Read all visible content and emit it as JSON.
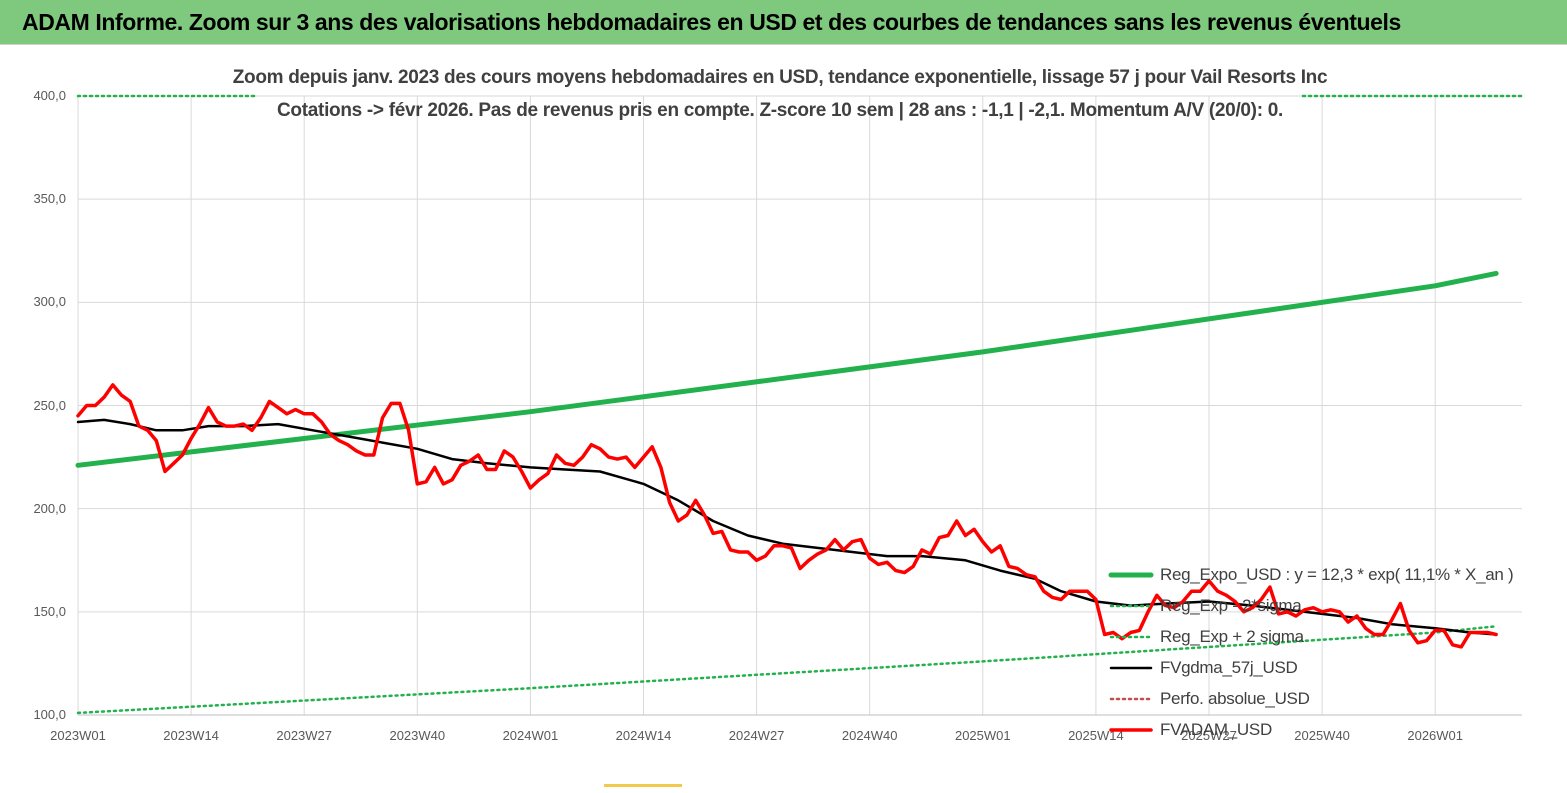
{
  "header": {
    "title": "ADAM Informe. Zoom sur 3 ans des valorisations hebdomadaires en USD et des courbes de tendances sans les revenus éventuels",
    "background": "#7fc97f"
  },
  "chart_data": {
    "type": "line",
    "title": "Zoom depuis janv. 2023 des cours moyens hebdomadaires en USD, tendance exponentielle, lissage 57 j pour Vail Resorts Inc",
    "subtitle": "Cotations -> févr 2026.  Pas de revenus pris en compte. Z-score 10 sem  | 28 ans : -1,1  | -2,1. Momentum A/V (20/0): 0.",
    "xlabel": "",
    "ylabel": "",
    "ylim": [
      100,
      400
    ],
    "yticks": [
      "100,0",
      "150,0",
      "200,0",
      "250,0",
      "300,0",
      "350,0",
      "400,0"
    ],
    "xticks": [
      "2023W01",
      "2023W14",
      "2023W27",
      "2023W40",
      "2024W01",
      "2024W14",
      "2024W27",
      "2024W40",
      "2025W01",
      "2025W14",
      "2025W27",
      "2025W40",
      "2026W01"
    ],
    "grid": true,
    "legend_position": "bottom-right",
    "series": [
      {
        "name": "Reg_Expo_USD : y = 12,3 * exp( 11,1% *  X_an )",
        "color": "#22b14c",
        "style": "solid-thick",
        "points": [
          [
            "2023W01",
            221
          ],
          [
            "2024W01",
            247
          ],
          [
            "2025W01",
            276
          ],
          [
            "2026W01",
            308
          ],
          [
            "2026W08",
            314
          ]
        ]
      },
      {
        "name": "Reg_Exp - 2*sigma",
        "color": "#22b14c",
        "style": "dotted",
        "points": [
          [
            "2023W01",
            101
          ],
          [
            "2024W01",
            113
          ],
          [
            "2025W01",
            126
          ],
          [
            "2026W01",
            140
          ],
          [
            "2026W08",
            143
          ]
        ]
      },
      {
        "name": "Reg_Exp + 2 sigma",
        "color": "#22b14c",
        "style": "dotted",
        "points": [
          [
            "2023W01",
            400
          ],
          [
            "2026W08",
            400
          ]
        ]
      },
      {
        "name": "FVgdma_57j_USD",
        "color": "#000000",
        "style": "solid",
        "points": [
          [
            "2023W01",
            242
          ],
          [
            "2023W04",
            243
          ],
          [
            "2023W07",
            241
          ],
          [
            "2023W10",
            238
          ],
          [
            "2023W13",
            238
          ],
          [
            "2023W16",
            240
          ],
          [
            "2023W20",
            240
          ],
          [
            "2023W24",
            241
          ],
          [
            "2023W28",
            238
          ],
          [
            "2023W32",
            235
          ],
          [
            "2023W36",
            232
          ],
          [
            "2023W40",
            229
          ],
          [
            "2023W44",
            224
          ],
          [
            "2023W48",
            222
          ],
          [
            "2024W01",
            220
          ],
          [
            "2024W05",
            219
          ],
          [
            "2024W09",
            218
          ],
          [
            "2024W14",
            212
          ],
          [
            "2024W18",
            204
          ],
          [
            "2024W22",
            194
          ],
          [
            "2024W26",
            187
          ],
          [
            "2024W30",
            183
          ],
          [
            "2024W34",
            181
          ],
          [
            "2024W38",
            179
          ],
          [
            "2024W42",
            177
          ],
          [
            "2024W46",
            177
          ],
          [
            "2024W51",
            175
          ],
          [
            "2025W03",
            170
          ],
          [
            "2025W07",
            166
          ],
          [
            "2025W10",
            160
          ],
          [
            "2025W14",
            155
          ],
          [
            "2025W18",
            153
          ],
          [
            "2025W22",
            154
          ],
          [
            "2025W27",
            155
          ],
          [
            "2025W32",
            153
          ],
          [
            "2025W36",
            151
          ],
          [
            "2025W40",
            149
          ],
          [
            "2025W44",
            147
          ],
          [
            "2025W48",
            144
          ],
          [
            "2026W01",
            142
          ],
          [
            "2026W05",
            140
          ],
          [
            "2026W08",
            139
          ]
        ]
      },
      {
        "name": "Perfo. absolue_USD",
        "color": "#c0504d",
        "style": "dotted",
        "points": []
      },
      {
        "name": "FVADAM_USD",
        "color": "#ff0000",
        "style": "solid-thick",
        "points": [
          [
            "2023W01",
            245
          ],
          [
            "2023W02",
            250
          ],
          [
            "2023W03",
            250
          ],
          [
            "2023W04",
            254
          ],
          [
            "2023W05",
            260
          ],
          [
            "2023W06",
            255
          ],
          [
            "2023W07",
            252
          ],
          [
            "2023W08",
            240
          ],
          [
            "2023W09",
            238
          ],
          [
            "2023W10",
            233
          ],
          [
            "2023W11",
            218
          ],
          [
            "2023W12",
            222
          ],
          [
            "2023W13",
            226
          ],
          [
            "2023W14",
            234
          ],
          [
            "2023W15",
            241
          ],
          [
            "2023W16",
            249
          ],
          [
            "2023W17",
            242
          ],
          [
            "2023W18",
            240
          ],
          [
            "2023W19",
            240
          ],
          [
            "2023W20",
            241
          ],
          [
            "2023W21",
            238
          ],
          [
            "2023W22",
            244
          ],
          [
            "2023W23",
            252
          ],
          [
            "2023W24",
            249
          ],
          [
            "2023W25",
            246
          ],
          [
            "2023W26",
            248
          ],
          [
            "2023W27",
            246
          ],
          [
            "2023W28",
            246
          ],
          [
            "2023W29",
            242
          ],
          [
            "2023W30",
            236
          ],
          [
            "2023W31",
            233
          ],
          [
            "2023W32",
            231
          ],
          [
            "2023W33",
            228
          ],
          [
            "2023W34",
            226
          ],
          [
            "2023W35",
            226
          ],
          [
            "2023W36",
            244
          ],
          [
            "2023W37",
            251
          ],
          [
            "2023W38",
            251
          ],
          [
            "2023W39",
            238
          ],
          [
            "2023W40",
            212
          ],
          [
            "2023W41",
            213
          ],
          [
            "2023W42",
            220
          ],
          [
            "2023W43",
            212
          ],
          [
            "2023W44",
            214
          ],
          [
            "2023W45",
            221
          ],
          [
            "2023W46",
            223
          ],
          [
            "2023W47",
            226
          ],
          [
            "2023W48",
            219
          ],
          [
            "2023W49",
            219
          ],
          [
            "2023W50",
            228
          ],
          [
            "2023W51",
            225
          ],
          [
            "2023W52",
            218
          ],
          [
            "2024W01",
            210
          ],
          [
            "2024W02",
            214
          ],
          [
            "2024W03",
            217
          ],
          [
            "2024W04",
            226
          ],
          [
            "2024W05",
            222
          ],
          [
            "2024W06",
            221
          ],
          [
            "2024W07",
            225
          ],
          [
            "2024W08",
            231
          ],
          [
            "2024W09",
            229
          ],
          [
            "2024W10",
            225
          ],
          [
            "2024W11",
            224
          ],
          [
            "2024W12",
            225
          ],
          [
            "2024W13",
            220
          ],
          [
            "2024W14",
            225
          ],
          [
            "2024W15",
            230
          ],
          [
            "2024W16",
            220
          ],
          [
            "2024W17",
            203
          ],
          [
            "2024W18",
            194
          ],
          [
            "2024W19",
            197
          ],
          [
            "2024W20",
            204
          ],
          [
            "2024W21",
            197
          ],
          [
            "2024W22",
            188
          ],
          [
            "2024W23",
            189
          ],
          [
            "2024W24",
            180
          ],
          [
            "2024W25",
            179
          ],
          [
            "2024W26",
            179
          ],
          [
            "2024W27",
            175
          ],
          [
            "2024W28",
            177
          ],
          [
            "2024W29",
            182
          ],
          [
            "2024W30",
            182
          ],
          [
            "2024W31",
            181
          ],
          [
            "2024W32",
            171
          ],
          [
            "2024W33",
            175
          ],
          [
            "2024W34",
            178
          ],
          [
            "2024W35",
            180
          ],
          [
            "2024W36",
            185
          ],
          [
            "2024W37",
            180
          ],
          [
            "2024W38",
            184
          ],
          [
            "2024W39",
            185
          ],
          [
            "2024W40",
            176
          ],
          [
            "2024W41",
            173
          ],
          [
            "2024W42",
            174
          ],
          [
            "2024W43",
            170
          ],
          [
            "2024W44",
            169
          ],
          [
            "2024W45",
            172
          ],
          [
            "2024W46",
            180
          ],
          [
            "2024W47",
            178
          ],
          [
            "2024W48",
            186
          ],
          [
            "2024W49",
            187
          ],
          [
            "2024W50",
            194
          ],
          [
            "2024W51",
            187
          ],
          [
            "2024W52",
            190
          ],
          [
            "2025W01",
            184
          ],
          [
            "2025W02",
            179
          ],
          [
            "2025W03",
            182
          ],
          [
            "2025W04",
            172
          ],
          [
            "2025W05",
            171
          ],
          [
            "2025W06",
            168
          ],
          [
            "2025W07",
            167
          ],
          [
            "2025W08",
            160
          ],
          [
            "2025W09",
            157
          ],
          [
            "2025W10",
            156
          ],
          [
            "2025W11",
            160
          ],
          [
            "2025W12",
            160
          ],
          [
            "2025W13",
            160
          ],
          [
            "2025W14",
            156
          ],
          [
            "2025W15",
            139
          ],
          [
            "2025W16",
            140
          ],
          [
            "2025W17",
            137
          ],
          [
            "2025W18",
            140
          ],
          [
            "2025W19",
            141
          ],
          [
            "2025W20",
            150
          ],
          [
            "2025W21",
            158
          ],
          [
            "2025W22",
            153
          ],
          [
            "2025W23",
            152
          ],
          [
            "2025W24",
            155
          ],
          [
            "2025W25",
            160
          ],
          [
            "2025W26",
            160
          ],
          [
            "2025W27",
            165
          ],
          [
            "2025W28",
            160
          ],
          [
            "2025W29",
            158
          ],
          [
            "2025W30",
            155
          ],
          [
            "2025W31",
            150
          ],
          [
            "2025W32",
            152
          ],
          [
            "2025W33",
            156
          ],
          [
            "2025W34",
            162
          ],
          [
            "2025W35",
            149
          ],
          [
            "2025W36",
            150
          ],
          [
            "2025W37",
            148
          ],
          [
            "2025W38",
            151
          ],
          [
            "2025W39",
            152
          ],
          [
            "2025W40",
            150
          ],
          [
            "2025W41",
            151
          ],
          [
            "2025W42",
            150
          ],
          [
            "2025W43",
            145
          ],
          [
            "2025W44",
            148
          ],
          [
            "2025W45",
            142
          ],
          [
            "2025W46",
            139
          ],
          [
            "2025W47",
            139
          ],
          [
            "2025W48",
            146
          ],
          [
            "2025W49",
            154
          ],
          [
            "2025W50",
            141
          ],
          [
            "2025W51",
            135
          ],
          [
            "2025W52",
            136
          ],
          [
            "2026W01",
            141
          ],
          [
            "2026W02",
            141
          ],
          [
            "2026W03",
            134
          ],
          [
            "2026W04",
            133
          ],
          [
            "2026W05",
            140
          ],
          [
            "2026W06",
            140
          ],
          [
            "2026W07",
            140
          ],
          [
            "2026W08",
            139
          ]
        ]
      }
    ]
  }
}
